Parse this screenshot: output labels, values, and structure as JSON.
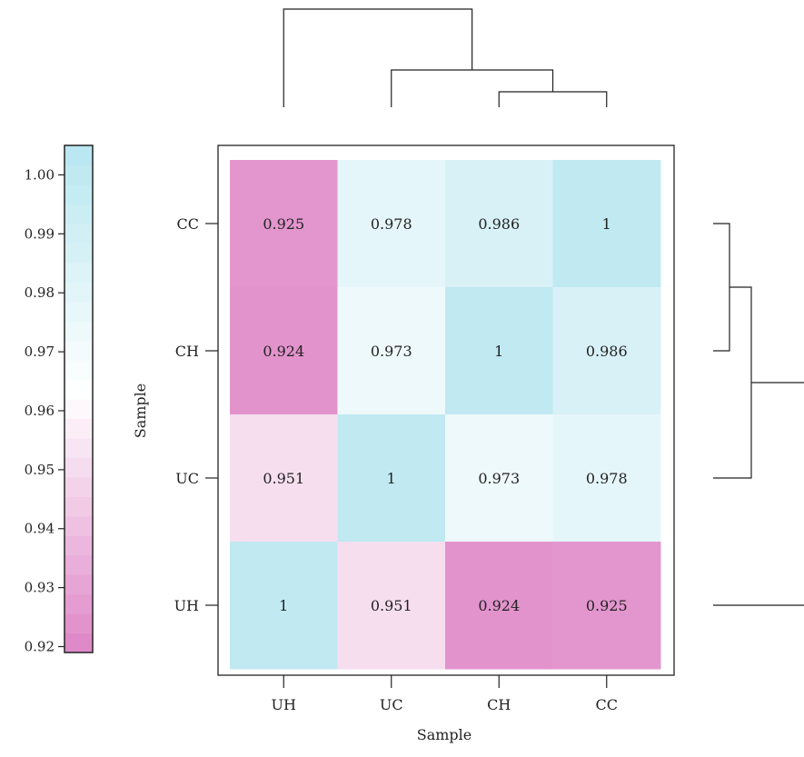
{
  "chart_data": {
    "type": "heatmap",
    "title": "",
    "xlabel": "Sample",
    "ylabel": "Sample",
    "x_categories": [
      "UH",
      "UC",
      "CH",
      "CC"
    ],
    "y_categories": [
      "UH",
      "UC",
      "CH",
      "CC"
    ],
    "values": [
      {
        "row": "CC",
        "cells": [
          {
            "value": 0.925,
            "label": "0.925"
          },
          {
            "value": 0.978,
            "label": "0.978"
          },
          {
            "value": 0.986,
            "label": "0.986"
          },
          {
            "value": 1,
            "label": "1"
          }
        ]
      },
      {
        "row": "CH",
        "cells": [
          {
            "value": 0.924,
            "label": "0.924"
          },
          {
            "value": 0.973,
            "label": "0.973"
          },
          {
            "value": 1,
            "label": "1"
          },
          {
            "value": 0.986,
            "label": "0.986"
          }
        ]
      },
      {
        "row": "UC",
        "cells": [
          {
            "value": 0.951,
            "label": "0.951"
          },
          {
            "value": 1,
            "label": "1"
          },
          {
            "value": 0.973,
            "label": "0.973"
          },
          {
            "value": 0.978,
            "label": "0.978"
          }
        ]
      },
      {
        "row": "UH",
        "cells": [
          {
            "value": 1,
            "label": "1"
          },
          {
            "value": 0.951,
            "label": "0.951"
          },
          {
            "value": 0.924,
            "label": "0.924"
          },
          {
            "value": 0.925,
            "label": "0.925"
          }
        ]
      }
    ],
    "colorbar": {
      "range": [
        0.919,
        1.005
      ],
      "ticks": [
        {
          "value": 1.0,
          "label": "1.00"
        },
        {
          "value": 0.99,
          "label": "0.99"
        },
        {
          "value": 0.98,
          "label": "0.98"
        },
        {
          "value": 0.97,
          "label": "0.97"
        },
        {
          "value": 0.96,
          "label": "0.96"
        },
        {
          "value": 0.95,
          "label": "0.95"
        },
        {
          "value": 0.94,
          "label": "0.94"
        },
        {
          "value": 0.93,
          "label": "0.93"
        },
        {
          "value": 0.92,
          "label": "0.92"
        }
      ],
      "placement": "left",
      "colors": {
        "low": "#de85c6",
        "mid": "#ffffff",
        "high": "#b7e6f0"
      }
    },
    "dendrogram_columns": "top",
    "dendrogram_rows": "right",
    "line_color": "#222222"
  }
}
